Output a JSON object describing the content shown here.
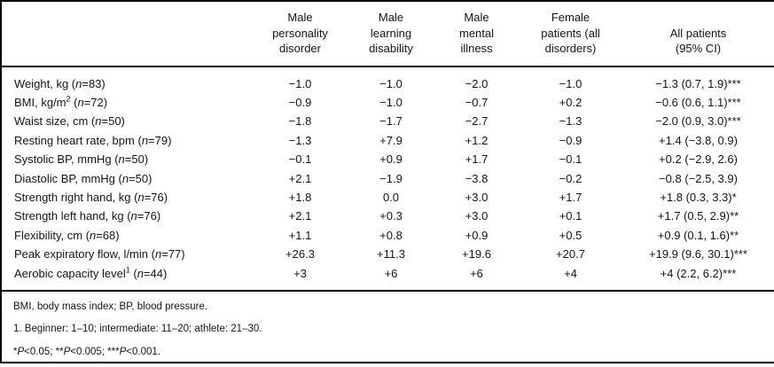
{
  "table": {
    "columns": [
      {
        "label": ""
      },
      {
        "label": "Male\npersonality\ndisorder"
      },
      {
        "label": "Male\nlearning\ndisability"
      },
      {
        "label": "Male\nmental\nillness"
      },
      {
        "label": "Female\npatients (all\ndisorders)"
      },
      {
        "label": "All patients\n(95% CI)"
      }
    ],
    "rows": [
      {
        "label": "Weight, kg",
        "sup": "",
        "n": "83",
        "values": [
          "−1.0",
          "−1.0",
          "−2.0",
          "−1.0",
          "−1.3 (0.7, 1.9)***"
        ]
      },
      {
        "label": "BMI, kg/m",
        "sup": "2",
        "n": "72",
        "values": [
          "−0.9",
          "−1.0",
          "−0.7",
          "+0.2",
          "−0.6 (0.6, 1.1)***"
        ]
      },
      {
        "label": "Waist size, cm",
        "sup": "",
        "n": "50",
        "values": [
          "−1.8",
          "−1.7",
          "−2.7",
          "−1.3",
          "−2.0 (0.9, 3.0)***"
        ]
      },
      {
        "label": "Resting heart rate, bpm",
        "sup": "",
        "n": "79",
        "values": [
          "−1.3",
          "+7.9",
          "+1.2",
          "−0.9",
          "+1.4 (−3.8, 0.9)"
        ]
      },
      {
        "label": "Systolic BP, mmHg",
        "sup": "",
        "n": "50",
        "values": [
          "−0.1",
          "+0.9",
          "+1.7",
          "−0.1",
          "+0.2 (−2.9, 2.6)"
        ]
      },
      {
        "label": "Diastolic BP, mmHg",
        "sup": "",
        "n": "50",
        "values": [
          "+2.1",
          "−1.9",
          "−3.8",
          "−0.2",
          "−0.8 (−2.5, 3.9)"
        ]
      },
      {
        "label": "Strength right hand, kg",
        "sup": "",
        "n": "76",
        "values": [
          "+1.8",
          "0.0",
          "+3.0",
          "+1.7",
          "+1.8 (0.3, 3.3)*"
        ]
      },
      {
        "label": "Strength left hand, kg",
        "sup": "",
        "n": "76",
        "values": [
          "+2.1",
          "+0.3",
          "+3.0",
          "+0.1",
          "+1.7 (0.5, 2.9)**"
        ]
      },
      {
        "label": "Flexibility, cm",
        "sup": "",
        "n": "68",
        "values": [
          "+1.1",
          "+0.8",
          "+0.9",
          "+0.5",
          "+0.9 (0.1, 1.6)**"
        ]
      },
      {
        "label": "Peak expiratory flow, l/min",
        "sup": "",
        "n": "77",
        "values": [
          "+26.3",
          "+11.3",
          "+19.6",
          "+20.7",
          "+19.9 (9.6, 30.1)***"
        ]
      },
      {
        "label": "Aerobic capacity level",
        "sup": "1",
        "n": "44",
        "values": [
          "+3",
          "+6",
          "+6",
          "+4",
          "+4 (2.2, 6.2)***"
        ]
      }
    ]
  },
  "footnotes": {
    "abbrev": "BMI, body mass index; BP, blood pressure.",
    "scale": "1. Beginner: 1–10; intermediate: 11–20; athlete: 21–30.",
    "significance_parts": [
      "*",
      "P",
      "<0.05; ",
      "**",
      "P",
      "<0.005; ",
      "***",
      "P",
      "<0.001."
    ]
  }
}
